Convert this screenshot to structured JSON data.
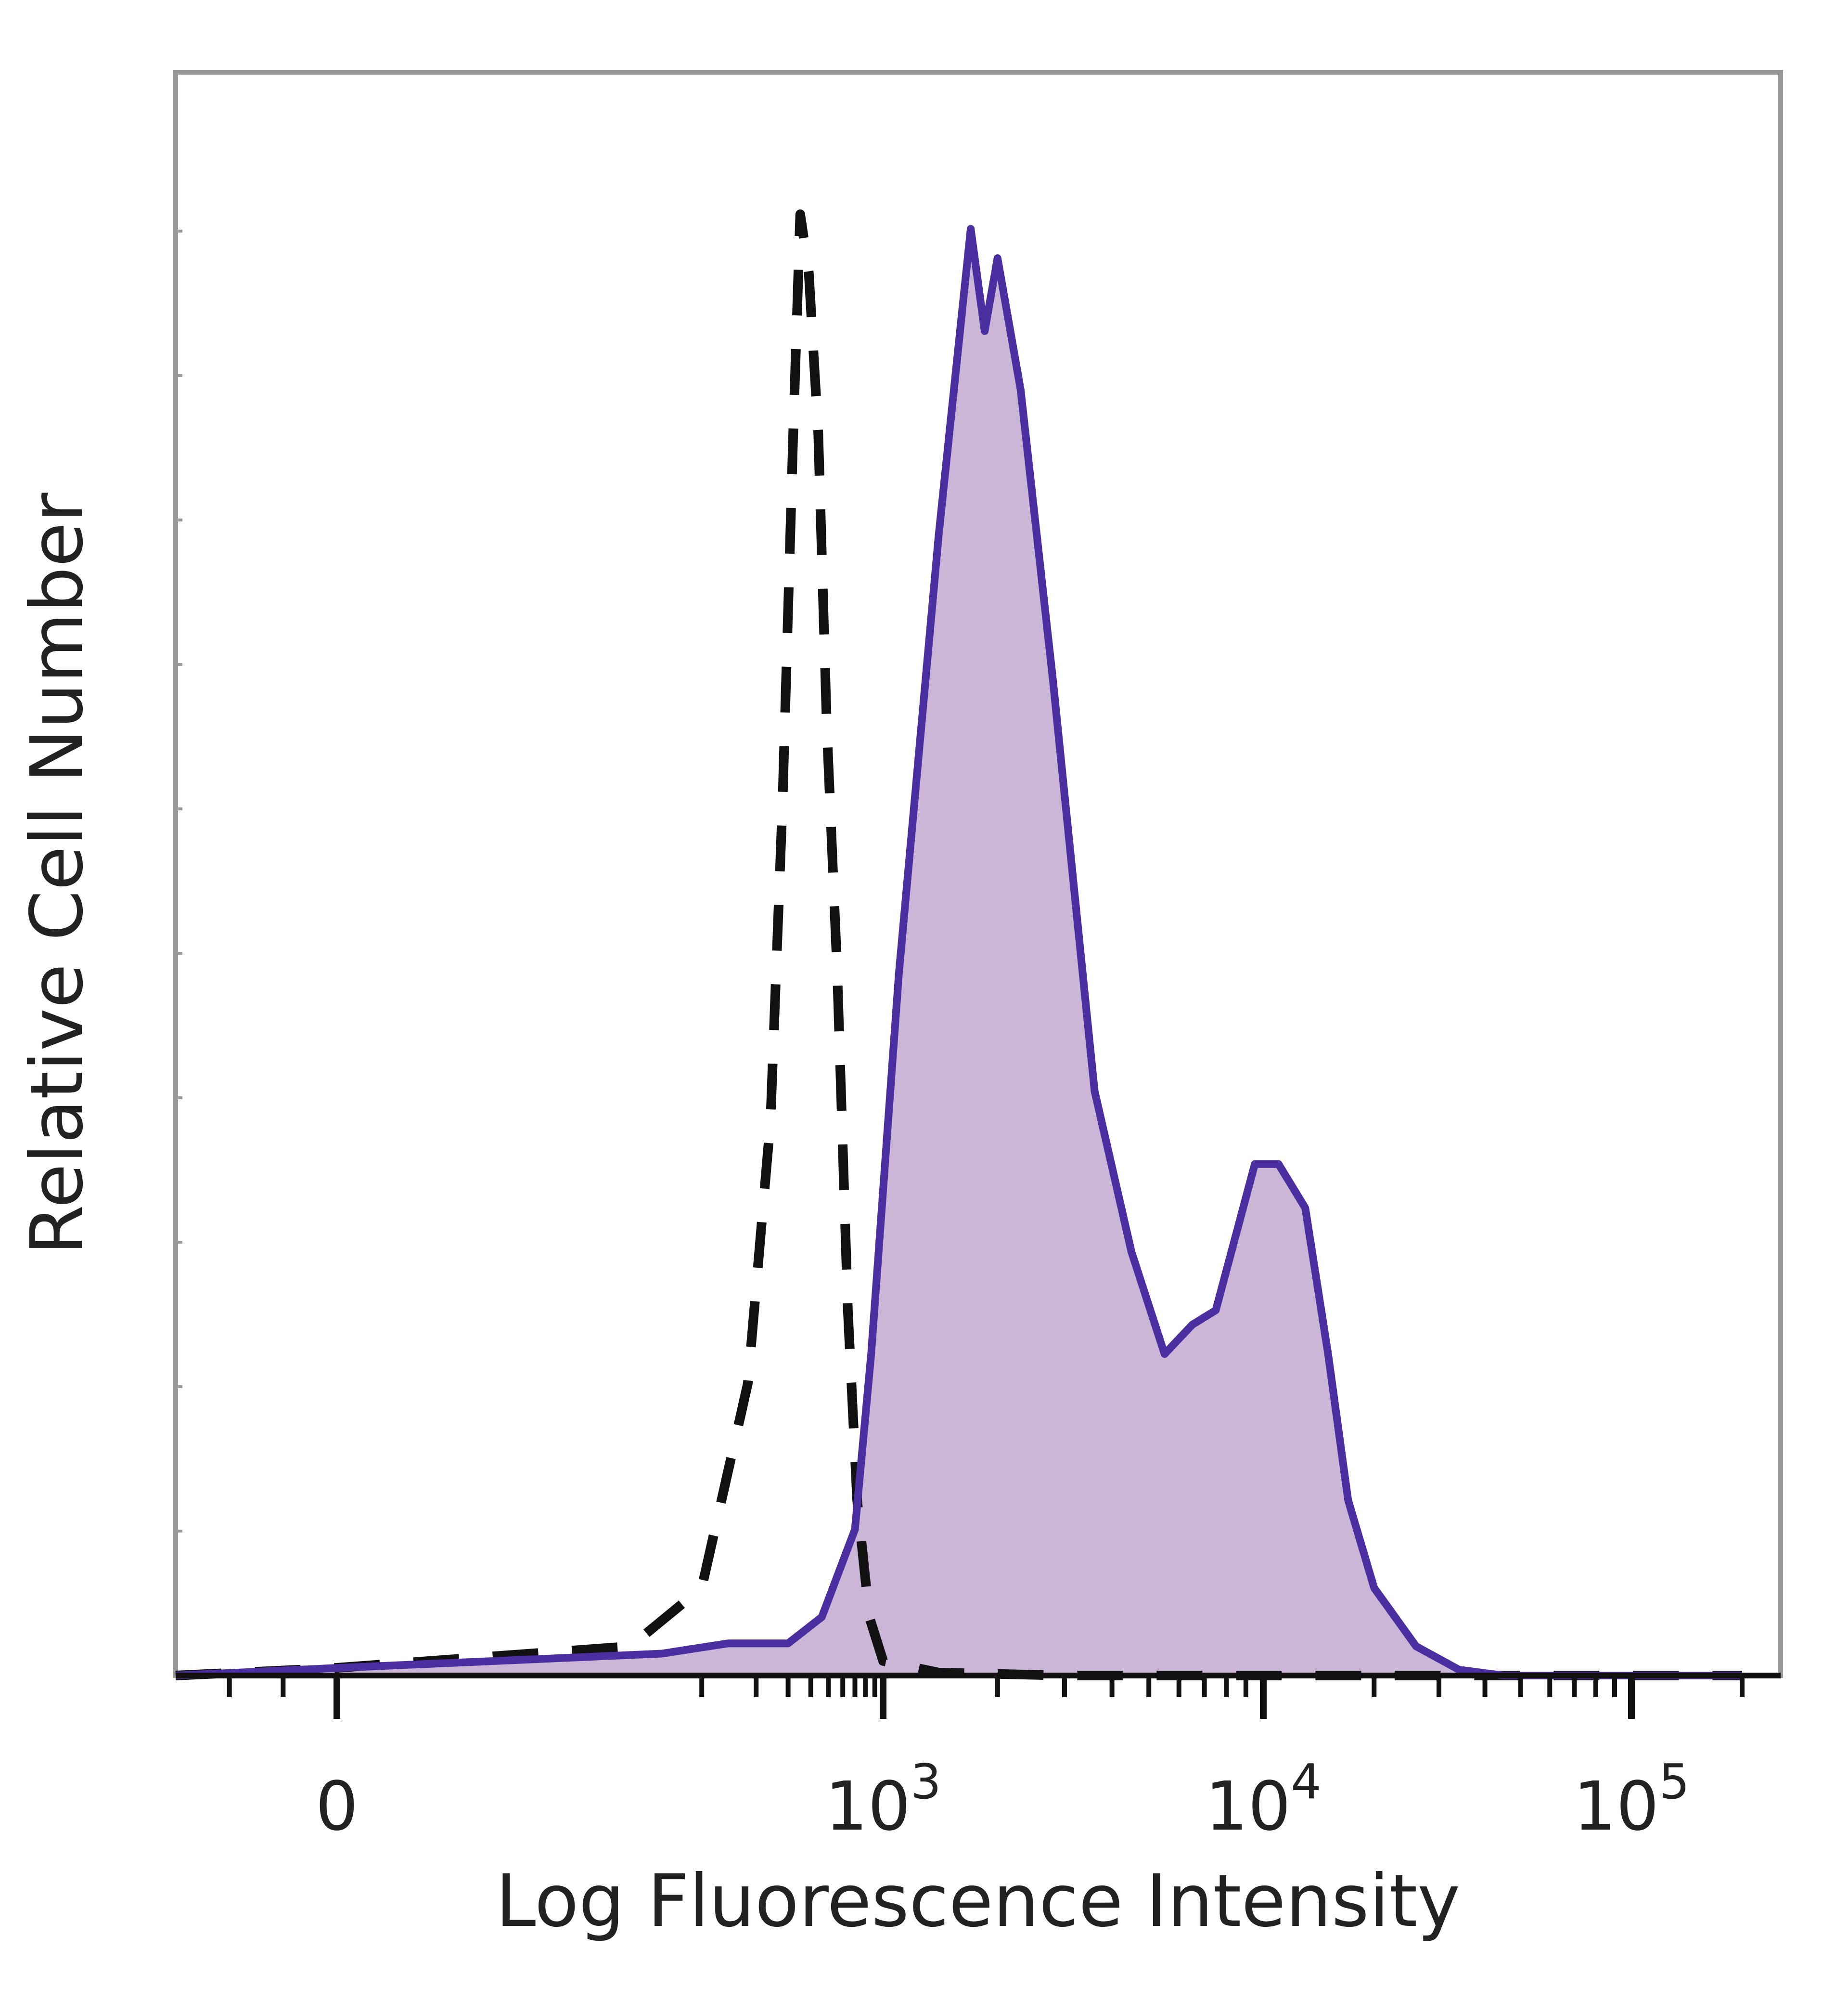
{
  "chart_data": {
    "type": "area",
    "title": "",
    "xlabel": "Log Fluorescence Intensity",
    "ylabel": "Relative Cell Number",
    "x_scale": "biexponential",
    "x_tick_labels": [
      {
        "label": "0",
        "base": "0",
        "exp": "",
        "value": 0
      },
      {
        "label": "10^3",
        "base": "10",
        "exp": "3",
        "value": 1000
      },
      {
        "label": "10^4",
        "base": "10",
        "exp": "4",
        "value": 10000
      },
      {
        "label": "10^5",
        "base": "10",
        "exp": "5",
        "value": 100000
      }
    ],
    "xlim": [
      -300,
      200000
    ],
    "ylim": [
      0,
      100
    ],
    "grid": false,
    "legend": "none",
    "series": [
      {
        "style": "dashed",
        "color": "#111111",
        "fill": "none",
        "points": [
          [
            -300,
            0
          ],
          [
            -10,
            0.5
          ],
          [
            40,
            2
          ],
          [
            100,
            6
          ],
          [
            180,
            20
          ],
          [
            240,
            38
          ],
          [
            280,
            60
          ],
          [
            320,
            85
          ],
          [
            350,
            100
          ],
          [
            390,
            96
          ],
          [
            440,
            85
          ],
          [
            490,
            65
          ],
          [
            560,
            48
          ],
          [
            640,
            25
          ],
          [
            720,
            12
          ],
          [
            840,
            4
          ],
          [
            1000,
            1
          ],
          [
            1400,
            0.2
          ],
          [
            3000,
            0
          ],
          [
            200000,
            0
          ]
        ]
      },
      {
        "style": "solid",
        "color": "#4b2fa0",
        "fill": "#cbb6d8",
        "points": [
          [
            -300,
            0
          ],
          [
            -10,
            0.5
          ],
          [
            60,
            1.5
          ],
          [
            140,
            2.2
          ],
          [
            300,
            2.2
          ],
          [
            460,
            4
          ],
          [
            700,
            10
          ],
          [
            860,
            22
          ],
          [
            1100,
            48
          ],
          [
            1400,
            78
          ],
          [
            1700,
            99
          ],
          [
            1850,
            92
          ],
          [
            2000,
            97
          ],
          [
            2300,
            88
          ],
          [
            2800,
            68
          ],
          [
            3600,
            40
          ],
          [
            4500,
            29
          ],
          [
            5500,
            22
          ],
          [
            6500,
            24
          ],
          [
            7500,
            25
          ],
          [
            9500,
            35
          ],
          [
            11000,
            35
          ],
          [
            13000,
            32
          ],
          [
            15000,
            22
          ],
          [
            17000,
            12
          ],
          [
            20000,
            6
          ],
          [
            26000,
            2
          ],
          [
            34000,
            0.4
          ],
          [
            45000,
            0
          ],
          [
            200000,
            0
          ]
        ]
      }
    ]
  }
}
